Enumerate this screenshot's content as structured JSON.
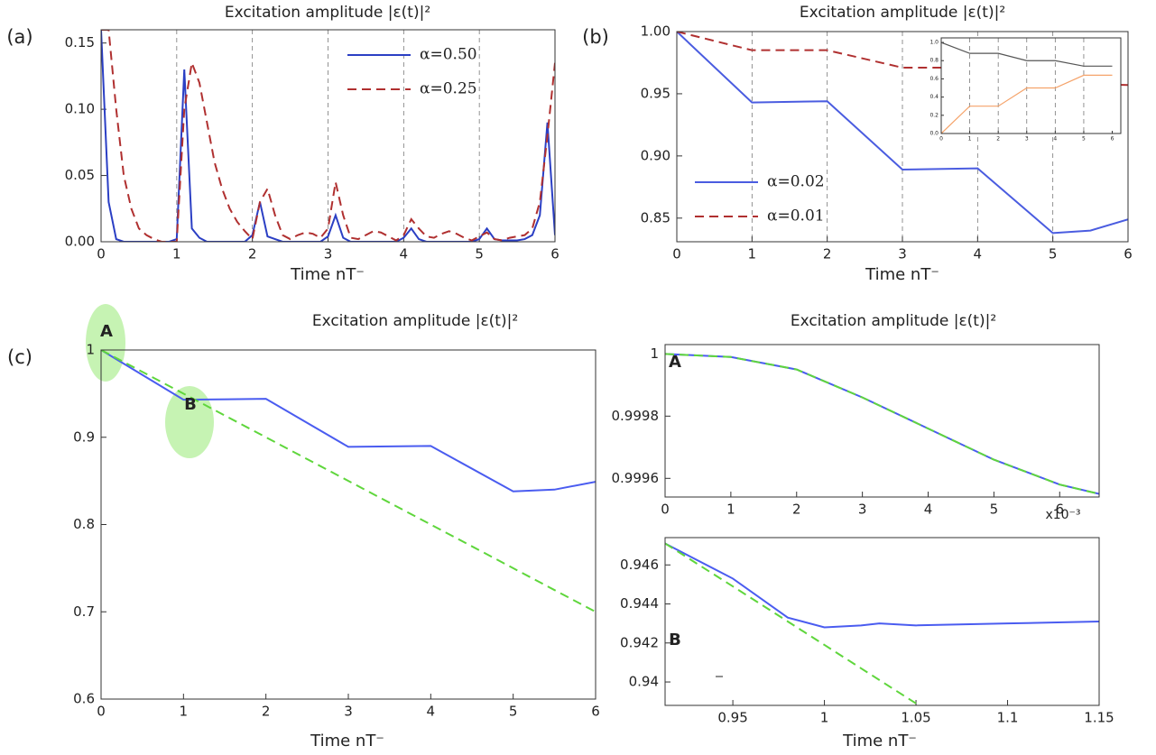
{
  "chart_data": [
    {
      "type": "line",
      "panel_label": "(a)",
      "title": "Excitation amplitude |ε(t)|²",
      "x_label": "Time nT⁻",
      "x": [
        0,
        0.1,
        0.2,
        0.3,
        0.4,
        0.5,
        0.6,
        0.7,
        0.8,
        0.9,
        1,
        1.1,
        1.2,
        1.3,
        1.4,
        1.5,
        1.6,
        1.7,
        1.8,
        1.9,
        2,
        2.1,
        2.2,
        2.3,
        2.4,
        2.5,
        2.6,
        2.7,
        2.8,
        2.9,
        3,
        3.1,
        3.2,
        3.3,
        3.4,
        3.5,
        3.6,
        3.7,
        3.8,
        3.9,
        4,
        4.1,
        4.2,
        4.3,
        4.4,
        4.5,
        4.6,
        4.7,
        4.8,
        4.9,
        5,
        5.1,
        5.2,
        5.3,
        5.4,
        5.5,
        5.6,
        5.7,
        5.8,
        5.9,
        6
      ],
      "series": [
        {
          "name": "α=0.50",
          "color": "#2b3fc4",
          "dash": false,
          "values": [
            0.16,
            0.03,
            0.002,
            0,
            0,
            0,
            0,
            0,
            0,
            0,
            0.002,
            0.13,
            0.01,
            0.003,
            0,
            0,
            0,
            0,
            0,
            0,
            0.005,
            0.03,
            0.004,
            0.002,
            0,
            0,
            0,
            0,
            0,
            0,
            0.004,
            0.02,
            0.003,
            0,
            0,
            0,
            0,
            0,
            0,
            0,
            0.003,
            0.01,
            0.002,
            0,
            0,
            0,
            0,
            0,
            0,
            0,
            0.002,
            0.01,
            0.002,
            0.001,
            0.001,
            0.001,
            0.002,
            0.005,
            0.02,
            0.09,
            0.005
          ]
        },
        {
          "name": "α=0.25",
          "color": "#b03030",
          "dash": true,
          "values": [
            0.16,
            0.16,
            0.1,
            0.05,
            0.025,
            0.01,
            0.005,
            0.002,
            0,
            0,
            0,
            0.1,
            0.135,
            0.12,
            0.09,
            0.06,
            0.04,
            0.025,
            0.015,
            0.008,
            0.002,
            0.03,
            0.04,
            0.02,
            0.005,
            0.002,
            0.005,
            0.007,
            0.006,
            0.003,
            0.01,
            0.045,
            0.02,
            0.003,
            0.002,
            0.005,
            0.008,
            0.007,
            0.004,
            0.001,
            0.005,
            0.017,
            0.01,
            0.004,
            0.003,
            0.006,
            0.008,
            0.006,
            0.003,
            0.001,
            0.004,
            0.007,
            0.002,
            0.001,
            0.003,
            0.004,
            0.005,
            0.01,
            0.03,
            0.08,
            0.135
          ]
        }
      ],
      "xlim": [
        0,
        6
      ],
      "xticks": [
        0,
        1,
        2,
        3,
        4,
        5,
        6
      ],
      "ylim": [
        0,
        0.16
      ],
      "yticks": [
        {
          "value": 0,
          "label": "0.00"
        },
        {
          "value": 0.05,
          "label": "0.05"
        },
        {
          "value": 0.1,
          "label": "0.10"
        },
        {
          "value": 0.15,
          "label": "0.15"
        }
      ],
      "vlines": [
        1,
        2,
        3,
        4,
        5
      ],
      "legend": "upper right"
    },
    {
      "type": "line",
      "panel_label": "(b)",
      "title": "Excitation amplitude |ε(t)|²",
      "x_label": "Time nT⁻",
      "x": [
        0,
        1,
        2,
        3,
        4,
        5,
        5.5,
        6
      ],
      "series": [
        {
          "name": "α=0.02",
          "color": "#4a5ce0",
          "dash": false,
          "values": [
            1.0,
            0.943,
            0.944,
            0.889,
            0.89,
            0.838,
            0.84,
            0.849
          ]
        },
        {
          "name": "α=0.01",
          "color": "#b03030",
          "dash": true,
          "values": [
            1.0,
            0.985,
            0.985,
            0.971,
            0.971,
            0.96,
            0.958,
            0.957
          ]
        }
      ],
      "xlim": [
        0,
        6
      ],
      "xticks": [
        0,
        1,
        2,
        3,
        4,
        5,
        6
      ],
      "ylim": [
        0.831,
        1.0
      ],
      "yticks": [
        {
          "value": 0.85,
          "label": "0.85"
        },
        {
          "value": 0.9,
          "label": "0.90"
        },
        {
          "value": 0.95,
          "label": "0.95"
        },
        {
          "value": 1,
          "label": "1.00"
        }
      ],
      "vlines": [
        1,
        2,
        3,
        4,
        5
      ],
      "legend": "lower left"
    },
    {
      "type": "line",
      "x": [
        0,
        1,
        2,
        3,
        4,
        5,
        6
      ],
      "series": [
        {
          "color": "#555555",
          "dash": false,
          "values": [
            1,
            0.88,
            0.88,
            0.8,
            0.8,
            0.74,
            0.74
          ]
        },
        {
          "color": "#f5a36a",
          "dash": false,
          "values": [
            0,
            0.3,
            0.3,
            0.5,
            0.5,
            0.64,
            0.64
          ]
        }
      ],
      "xlim": [
        0,
        6.3
      ],
      "xticks": [
        0,
        1,
        2,
        3,
        4,
        5,
        6
      ],
      "ylim": [
        0,
        1.05
      ],
      "yticks": [
        {
          "value": 0,
          "label": "0.0"
        },
        0.2,
        0.4,
        0.6,
        0.8,
        {
          "value": 1,
          "label": "1.0"
        }
      ],
      "vlines": [
        1,
        2,
        3,
        4,
        5
      ]
    },
    {
      "type": "line",
      "panel_label": "(c)",
      "title": "Excitation amplitude |ε(t)|²",
      "x_label": "Time nT⁻",
      "x": [
        0,
        1,
        2,
        3,
        4,
        5,
        5.5,
        6
      ],
      "series": [
        {
          "color": "#4a5cf0",
          "dash": false,
          "values": [
            1.0,
            0.943,
            0.944,
            0.889,
            0.89,
            0.838,
            0.84,
            0.849
          ]
        },
        {
          "color": "#5fd63c",
          "dash": true,
          "values": [
            1.0,
            0.95,
            0.9,
            0.85,
            0.8,
            0.75,
            0.725,
            0.7
          ]
        }
      ],
      "xlim": [
        0,
        6
      ],
      "xticks": [
        0,
        1,
        2,
        3,
        4,
        5,
        6
      ],
      "ylim": [
        0.6,
        1.0
      ],
      "yticks": [
        0.6,
        0.7,
        0.8,
        0.9,
        1
      ],
      "annotations": [
        "A",
        "B"
      ]
    },
    {
      "type": "line",
      "title": "Excitation amplitude |ε(t)|²",
      "x_multiplier": "x10⁻³",
      "x": [
        0,
        1,
        2,
        3,
        4,
        5,
        6,
        6.6
      ],
      "series": [
        {
          "color": "#4a5cf0",
          "dash": false,
          "values": [
            1.0,
            0.99999,
            0.99995,
            0.99986,
            0.99976,
            0.99966,
            0.99958,
            0.99955
          ]
        },
        {
          "color": "#5fd63c",
          "dash": true,
          "values": [
            1.0,
            0.99999,
            0.99995,
            0.99986,
            0.99976,
            0.99966,
            0.99958,
            0.99955
          ]
        }
      ],
      "xlim": [
        0,
        6.6
      ],
      "xticks": [
        0,
        1,
        2,
        3,
        4,
        5,
        6
      ],
      "ylim": [
        0.99954,
        1.00003
      ],
      "yticks": [
        0.9996,
        0.9998,
        1
      ],
      "annotation": "A"
    },
    {
      "type": "line",
      "x_label": "Time nT⁻",
      "x": [
        0.913,
        0.95,
        0.98,
        1.0,
        1.02,
        1.03,
        1.05,
        1.1,
        1.15
      ],
      "series": [
        {
          "color": "#4a5cf0",
          "dash": false,
          "values": [
            0.9471,
            0.9453,
            0.9433,
            0.9428,
            0.9429,
            0.943,
            0.9429,
            0.943,
            0.9431
          ]
        },
        {
          "color": "#5fd63c",
          "dash": true,
          "values": [
            0.9471,
            0.9449,
            0.9431,
            0.9419,
            0.9407,
            0.9401,
            0.9389,
            null,
            null
          ]
        }
      ],
      "xlim": [
        0.913,
        1.15
      ],
      "xticks": [
        0.95,
        1,
        1.05,
        1.1,
        1.15
      ],
      "ylim": [
        0.9388,
        0.9474
      ],
      "yticks": [
        0.94,
        0.942,
        0.944,
        0.946
      ],
      "annotation": "B"
    }
  ]
}
